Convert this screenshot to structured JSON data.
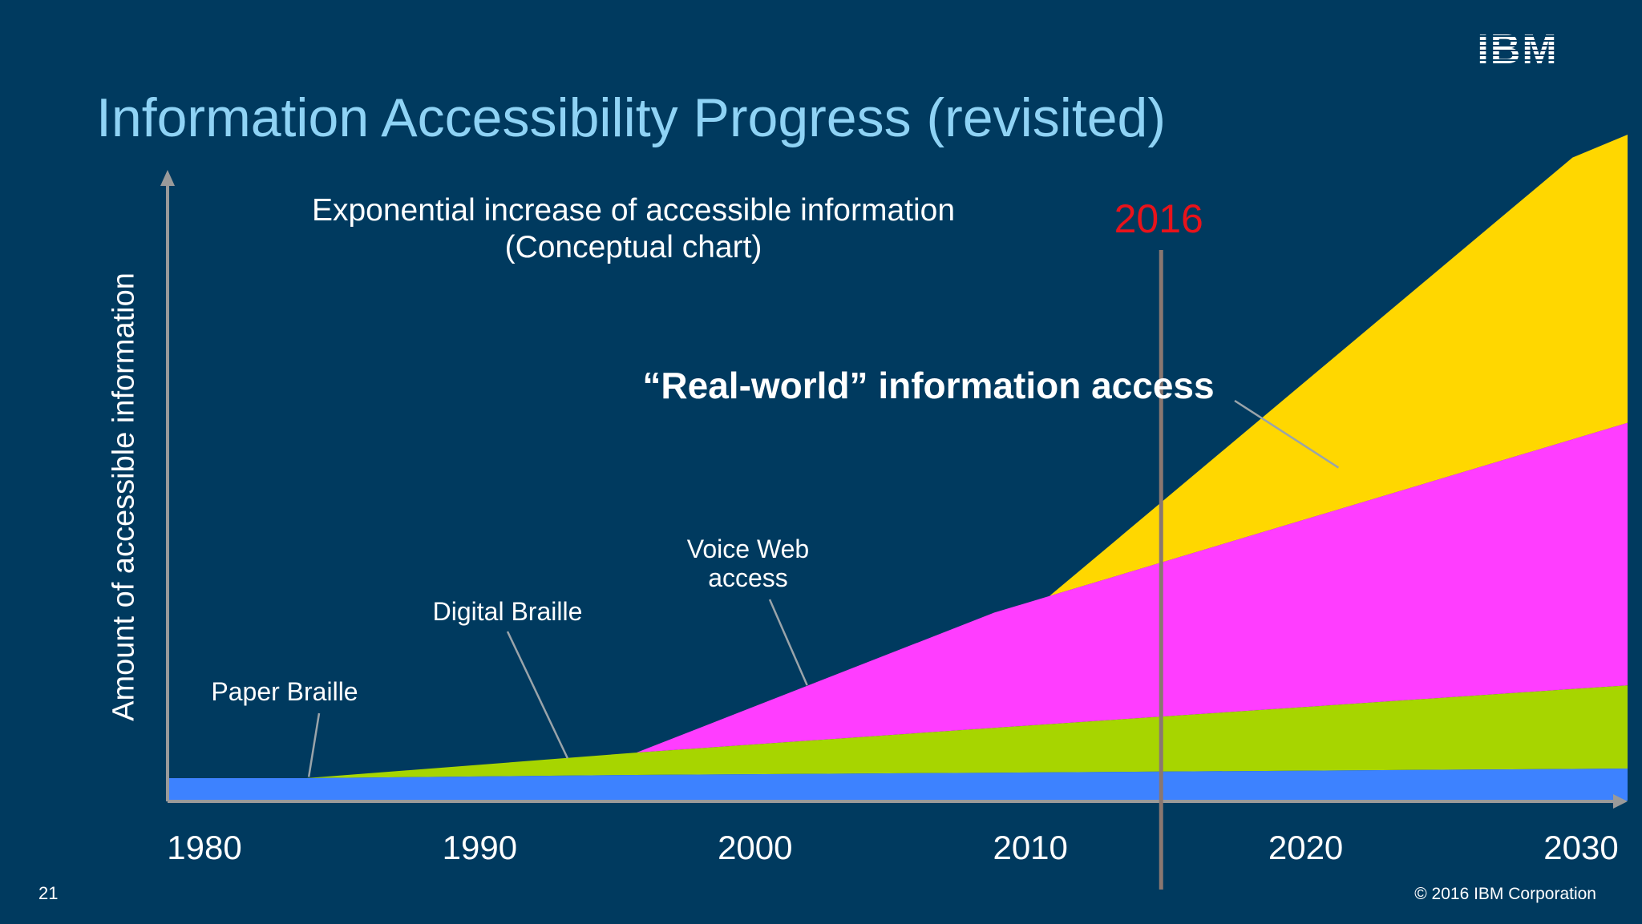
{
  "slide": {
    "title": "Information Accessibility Progress (revisited)",
    "subtitle_line1": "Exponential increase of accessible information",
    "subtitle_line2": "(Conceptual chart)",
    "page_number": "21",
    "copyright": "© 2016 IBM Corporation",
    "logo_text": "IBM"
  },
  "chart_data": {
    "type": "area",
    "stacked": true,
    "conceptual": true,
    "ylabel": "Amount of accessible information",
    "xlim": [
      1980,
      2033
    ],
    "ylim": [
      0,
      100
    ],
    "x_ticks": [
      1980,
      1990,
      2000,
      2010,
      2020,
      2030
    ],
    "grid": false,
    "legend": "none",
    "marker": {
      "label": "2016",
      "x": 2016,
      "color": "#e8131b"
    },
    "series": [
      {
        "name": "Paper Braille",
        "color": "#3d82ff",
        "points": [
          [
            1980,
            3.5
          ],
          [
            1985,
            3.5
          ],
          [
            1997,
            4.0
          ],
          [
            2033,
            5.0
          ]
        ]
      },
      {
        "name": "Digital Braille",
        "color": "#a7d500",
        "points": [
          [
            1980,
            0
          ],
          [
            1985,
            0
          ],
          [
            1997,
            3.5
          ],
          [
            2010,
            7.0
          ],
          [
            2033,
            13.0
          ]
        ]
      },
      {
        "name": "Voice Web access",
        "color": "#ff3dff",
        "points": [
          [
            1980,
            0
          ],
          [
            1997,
            0
          ],
          [
            2010,
            18.0
          ],
          [
            2033,
            41.0
          ]
        ]
      },
      {
        "name": "“Real-world” information access",
        "color": "#ffd700",
        "points": [
          [
            1980,
            0
          ],
          [
            2012,
            0
          ],
          [
            2031,
            44.0
          ],
          [
            2033,
            45.0
          ]
        ]
      }
    ],
    "annotations": [
      {
        "text": "Paper Braille",
        "lines": [
          "Paper Braille"
        ],
        "target_series": 0,
        "x": 1985.1,
        "y": 3.7
      },
      {
        "text": "Digital Braille",
        "lines": [
          "Digital Braille"
        ],
        "target_series": 1,
        "x": 1994.5,
        "y": 6.6
      },
      {
        "text": "Voice Web access",
        "lines": [
          "Voice Web",
          "access"
        ],
        "target_series": 2,
        "x": 2003.2,
        "y": 18
      },
      {
        "text": "“Real-world” information access",
        "lines": [
          "“Real-world” information access"
        ],
        "target_series": 3,
        "x": 2022.5,
        "y": 52,
        "bold": true
      }
    ]
  }
}
